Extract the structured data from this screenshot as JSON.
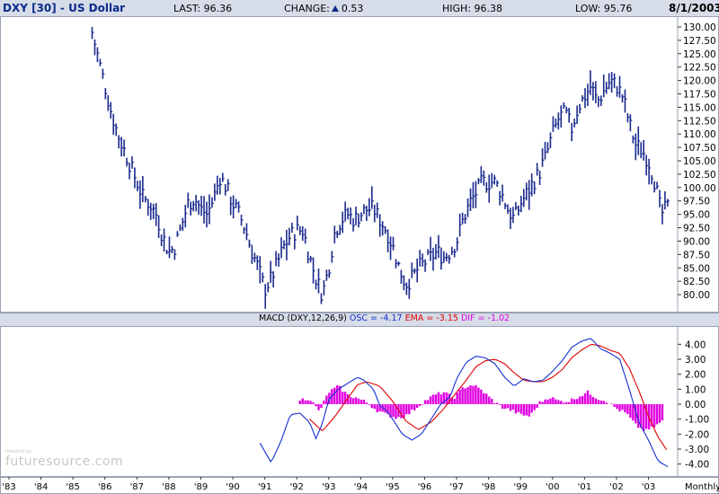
{
  "header": {
    "title": "DXY [30] - US Dollar",
    "last_label": "LAST:",
    "last_value": "96.36",
    "change_label": "CHANGE:",
    "change_value": "0.53",
    "high_label": "HIGH:",
    "high_value": "96.38",
    "low_label": "LOW:",
    "low_value": "95.76",
    "date": "8/1/2003",
    "accent_color": "#0b2a8a"
  },
  "macd": {
    "name": "MACD (DXY,12,26,9)",
    "osc_text": "OSC = -4.17",
    "ema_text": "EMA = -3.15",
    "dif_text": "DIF = -1.02",
    "colors": {
      "osc": "#1530d0",
      "ema": "#e00000",
      "dif": "#e000e0"
    }
  },
  "watermark": {
    "small": "Powered by",
    "brand": "futuresource.com"
  },
  "periodicity": "Monthly",
  "chart_data": [
    {
      "type": "line",
      "style": "ohlc",
      "title": "DXY [30] - US Dollar",
      "color": "#1a2a8c",
      "ylim": [
        78,
        131
      ],
      "yticks": [
        "130.00",
        "127.50",
        "125.00",
        "122.50",
        "120.00",
        "117.50",
        "115.00",
        "112.50",
        "110.00",
        "107.50",
        "105.00",
        "102.50",
        "100.00",
        "97.50",
        "95.00",
        "92.50",
        "90.00",
        "87.50",
        "85.00",
        "82.50",
        "80.00"
      ],
      "xticks": [
        "'83",
        "'84",
        "'85",
        "'86",
        "'87",
        "'88",
        "'89",
        "'90",
        "'91",
        "'92",
        "'93",
        "'94",
        "'95",
        "'96",
        "'97",
        "'98",
        "'99",
        "'00",
        "'01",
        "'02",
        "'03"
      ],
      "x": [
        1985.6,
        1985.8,
        1986.0,
        1986.2,
        1986.4,
        1986.6,
        1986.8,
        1987.0,
        1987.2,
        1987.4,
        1987.6,
        1987.8,
        1988.0,
        1988.2,
        1988.4,
        1988.6,
        1988.8,
        1989.0,
        1989.2,
        1989.4,
        1989.6,
        1989.8,
        1990.0,
        1990.2,
        1990.4,
        1990.6,
        1990.8,
        1991.0,
        1991.2,
        1991.4,
        1991.6,
        1991.8,
        1992.0,
        1992.2,
        1992.4,
        1992.6,
        1992.8,
        1993.0,
        1993.2,
        1993.4,
        1993.6,
        1993.8,
        1994.0,
        1994.2,
        1994.4,
        1994.6,
        1994.8,
        1995.0,
        1995.2,
        1995.4,
        1995.6,
        1995.8,
        1996.0,
        1996.2,
        1996.4,
        1996.6,
        1996.8,
        1997.0,
        1997.2,
        1997.4,
        1997.6,
        1997.8,
        1998.0,
        1998.2,
        1998.4,
        1998.6,
        1998.8,
        1999.0,
        1999.2,
        1999.4,
        1999.6,
        1999.8,
        2000.0,
        2000.2,
        2000.4,
        2000.6,
        2000.8,
        2001.0,
        2001.2,
        2001.4,
        2001.6,
        2001.8,
        2002.0,
        2002.2,
        2002.4,
        2002.6,
        2002.8,
        2003.0,
        2003.2,
        2003.4,
        2003.6
      ],
      "values": [
        129,
        124,
        119,
        114,
        110,
        107,
        104,
        101,
        98,
        97,
        95,
        91,
        88,
        89,
        93,
        97,
        98,
        96,
        95,
        98,
        102,
        100,
        97,
        95,
        92,
        88,
        85,
        81,
        83,
        86,
        89,
        91,
        92,
        92,
        87,
        83,
        80,
        85,
        92,
        94,
        95,
        94,
        95,
        96,
        96,
        94,
        92,
        89,
        85,
        82,
        83,
        85,
        86,
        87,
        88,
        87,
        88,
        90,
        94,
        97,
        99,
        101,
        101,
        101,
        99,
        96,
        94,
        97,
        99,
        101,
        103,
        106,
        110,
        113,
        114,
        111,
        115,
        117,
        119,
        116,
        118,
        120,
        119,
        117,
        112,
        108,
        107,
        105,
        101,
        95,
        96.36
      ]
    },
    {
      "type": "bar",
      "title": "MACD (DXY,12,26,9)",
      "ylim": [
        -4.5,
        4.5
      ],
      "yticks": [
        "4.00",
        "3.00",
        "2.00",
        "1.00",
        "0.00",
        "-1.00",
        "-2.00",
        "-3.00",
        "-4.00"
      ],
      "series": [
        {
          "name": "OSC",
          "color": "#1530d0",
          "x": [
            1990.85,
            1991.2,
            1991.5,
            1991.8,
            1992.1,
            1992.4,
            1992.6,
            1992.8,
            1993.0,
            1993.3,
            1993.6,
            1993.9,
            1994.1,
            1994.4,
            1994.6,
            1994.8,
            1995.0,
            1995.3,
            1995.6,
            1995.9,
            1996.2,
            1996.5,
            1996.8,
            1997.0,
            1997.3,
            1997.6,
            1997.9,
            1998.2,
            1998.5,
            1998.8,
            1999.1,
            1999.4,
            1999.7,
            2000.0,
            2000.3,
            2000.6,
            2000.9,
            2001.2,
            2001.5,
            2001.8,
            2002.1,
            2002.4,
            2002.7,
            2003.0,
            2003.3,
            2003.6
          ],
          "values": [
            -2.6,
            -3.9,
            -2.5,
            -0.7,
            -0.6,
            -1.2,
            -2.3,
            -1.3,
            0.3,
            1.0,
            1.4,
            1.8,
            1.6,
            1.0,
            -0.1,
            -0.4,
            -1.0,
            -2.0,
            -2.4,
            -2.0,
            -1.0,
            0.0,
            0.5,
            1.7,
            2.8,
            3.2,
            3.1,
            2.7,
            1.8,
            1.2,
            1.7,
            1.5,
            1.6,
            2.2,
            2.9,
            3.8,
            4.2,
            4.4,
            3.7,
            3.4,
            3.0,
            1.0,
            -1.2,
            -2.4,
            -3.8,
            -4.17
          ]
        },
        {
          "name": "EMA",
          "color": "#e00000",
          "x": [
            1992.4,
            1992.8,
            1993.2,
            1993.6,
            1993.9,
            1994.2,
            1994.6,
            1995.0,
            1995.4,
            1995.8,
            1996.2,
            1996.6,
            1997.0,
            1997.3,
            1997.6,
            1997.9,
            1998.2,
            1998.5,
            1998.8,
            1999.1,
            1999.4,
            1999.7,
            2000.0,
            2000.3,
            2000.6,
            2000.9,
            2001.2,
            2001.5,
            2001.8,
            2002.1,
            2002.4,
            2002.7,
            2003.0,
            2003.3,
            2003.6
          ],
          "values": [
            -1.0,
            -1.8,
            -0.8,
            0.4,
            1.3,
            1.5,
            1.2,
            0.2,
            -1.1,
            -1.7,
            -1.2,
            -0.3,
            0.8,
            1.6,
            2.5,
            2.9,
            3.0,
            2.7,
            2.1,
            1.6,
            1.5,
            1.5,
            1.8,
            2.3,
            3.1,
            3.6,
            4.0,
            3.9,
            3.6,
            3.4,
            2.4,
            0.9,
            -0.8,
            -2.2,
            -3.15
          ]
        },
        {
          "name": "DIF",
          "color": "#e000e0",
          "x": [
            1992.1,
            1992.4,
            1992.7,
            1993.0,
            1993.3,
            1993.6,
            1993.9,
            1994.2,
            1994.5,
            1994.8,
            1995.1,
            1995.4,
            1995.7,
            1996.0,
            1996.3,
            1996.6,
            1996.9,
            1997.2,
            1997.5,
            1997.8,
            1998.1,
            1998.4,
            1998.7,
            1999.0,
            1999.3,
            1999.6,
            1999.9,
            2000.2,
            2000.5,
            2000.8,
            2001.1,
            2001.4,
            2001.7,
            2002.0,
            2002.3,
            2002.6,
            2002.9,
            2003.2,
            2003.5
          ],
          "values": [
            0.3,
            0.4,
            -0.5,
            0.8,
            1.2,
            0.6,
            0.4,
            0.1,
            -0.4,
            -0.7,
            -0.9,
            -0.8,
            -0.3,
            0.2,
            0.6,
            0.8,
            0.4,
            1.1,
            1.3,
            0.9,
            0.3,
            -0.2,
            -0.4,
            -0.7,
            -0.8,
            0.1,
            0.5,
            0.2,
            0.2,
            0.5,
            0.8,
            0.4,
            0.2,
            -0.3,
            -0.6,
            -1.4,
            -1.8,
            -1.5,
            -1.02
          ]
        }
      ]
    }
  ]
}
